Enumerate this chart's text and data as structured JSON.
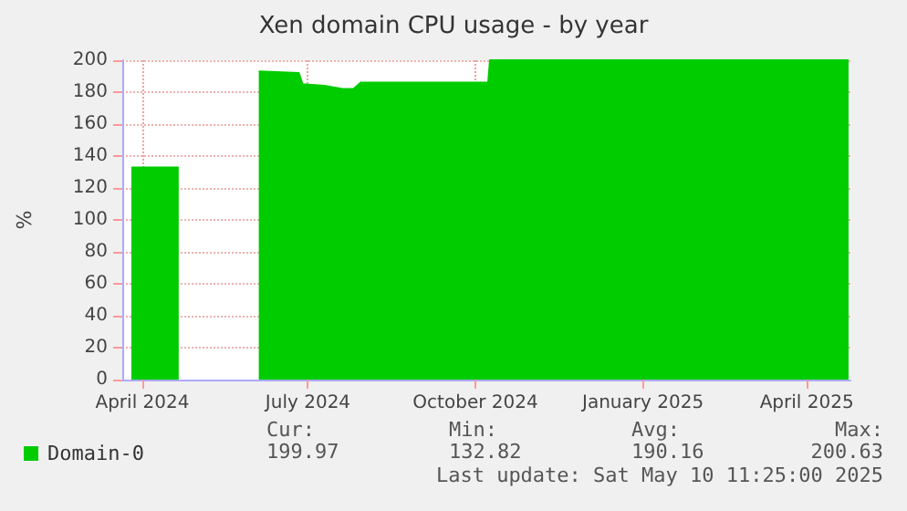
{
  "chart_data": {
    "type": "area",
    "title": "Xen domain CPU usage - by year",
    "ylabel": "%",
    "series": [
      {
        "name": "Domain-0",
        "color": "#00cc00",
        "x": [
          "2024-03-26",
          "2024-04-21",
          "2024-04-22",
          "2024-06-04",
          "2024-06-26",
          "2024-06-28",
          "2024-07-10",
          "2024-07-20",
          "2024-07-26",
          "2024-07-30",
          "2024-10-08",
          "2024-10-09",
          "2025-04-24"
        ],
        "values": [
          132.8,
          132.8,
          null,
          193,
          192,
          185,
          184,
          182,
          182,
          186,
          186,
          200,
          200
        ]
      }
    ],
    "xlim": [
      "2024-03-21",
      "2025-04-25"
    ],
    "xticks": [
      {
        "value": "2024-04-01",
        "label": "April 2024"
      },
      {
        "value": "2024-07-01",
        "label": "July 2024"
      },
      {
        "value": "2024-10-01",
        "label": "October 2024"
      },
      {
        "value": "2025-01-01",
        "label": "January 2025"
      },
      {
        "value": "2025-04-01",
        "label": "April 2025"
      }
    ],
    "ylim": [
      0,
      200
    ],
    "yticks": [
      0,
      20,
      40,
      60,
      80,
      100,
      120,
      140,
      160,
      180,
      200
    ],
    "grid": true,
    "legend": "bottom left",
    "annotations": [
      "Cur:",
      "Min:",
      "Avg:",
      "Max:",
      "199.97",
      "132.82",
      "190.16",
      "200.63",
      "Last update: Sat May 10 11:25:00 2025"
    ]
  }
}
